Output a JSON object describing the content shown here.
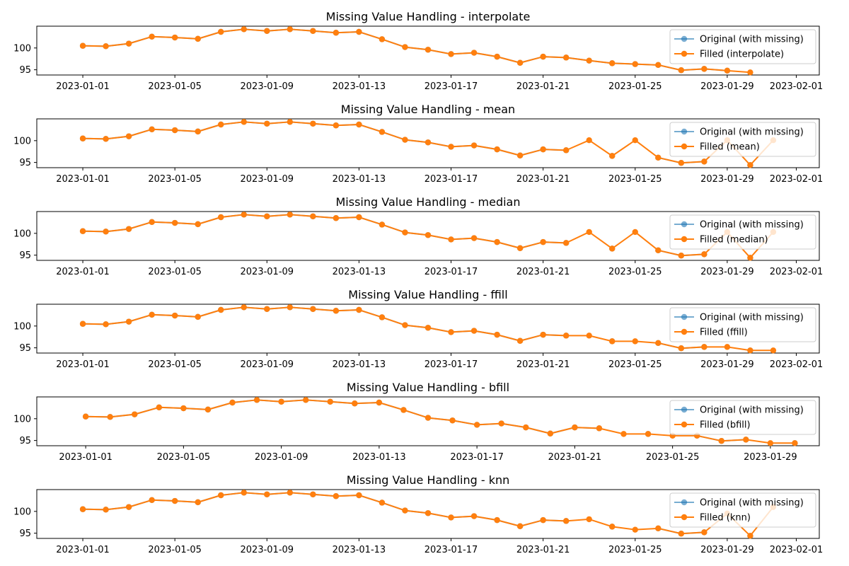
{
  "colors": {
    "original": "#1f77b4",
    "filled": "#ff7f0e",
    "axis": "#000000",
    "legend_border": "#cccccc"
  },
  "chart_data": [
    {
      "type": "line",
      "title": "Missing Value Handling - interpolate",
      "x_type": "date",
      "x": [
        "2023-01-01",
        "2023-01-02",
        "2023-01-03",
        "2023-01-04",
        "2023-01-05",
        "2023-01-06",
        "2023-01-07",
        "2023-01-08",
        "2023-01-09",
        "2023-01-10",
        "2023-01-11",
        "2023-01-12",
        "2023-01-13",
        "2023-01-14",
        "2023-01-15",
        "2023-01-16",
        "2023-01-17",
        "2023-01-18",
        "2023-01-19",
        "2023-01-20",
        "2023-01-21",
        "2023-01-22",
        "2023-01-23",
        "2023-01-24",
        "2023-01-25",
        "2023-01-26",
        "2023-01-27",
        "2023-01-28",
        "2023-01-29",
        "2023-01-30"
      ],
      "xlim": [
        "2022-12-30",
        "2023-02-02"
      ],
      "x_ticks": [
        "2023-01-01",
        "2023-01-05",
        "2023-01-09",
        "2023-01-13",
        "2023-01-17",
        "2023-01-21",
        "2023-01-25",
        "2023-01-29",
        "2023-02-01"
      ],
      "ylim": [
        93.8,
        105.0
      ],
      "y_ticks": [
        95,
        100
      ],
      "series": [
        {
          "name": "Original (with missing)",
          "values": [
            100.5,
            100.4,
            101.0,
            102.6,
            102.4,
            102.1,
            103.7,
            104.3,
            103.9,
            104.3,
            103.9,
            103.5,
            103.7,
            102.0,
            100.2,
            99.6,
            98.6,
            98.9,
            98.0,
            96.6,
            98.0,
            97.8,
            97.1,
            96.5,
            96.3,
            96.1,
            94.9,
            95.2,
            94.8,
            null
          ]
        },
        {
          "name": "Filled (interpolate)",
          "values": [
            100.5,
            100.4,
            101.0,
            102.6,
            102.4,
            102.1,
            103.7,
            104.3,
            103.9,
            104.3,
            103.9,
            103.5,
            103.7,
            102.0,
            100.2,
            99.6,
            98.6,
            98.9,
            98.0,
            96.6,
            98.0,
            97.8,
            97.1,
            96.5,
            96.3,
            96.1,
            94.9,
            95.2,
            94.8,
            94.4
          ]
        }
      ],
      "legend": "upper right"
    },
    {
      "type": "line",
      "title": "Missing Value Handling - mean",
      "x_type": "date",
      "x": [
        "2023-01-01",
        "2023-01-02",
        "2023-01-03",
        "2023-01-04",
        "2023-01-05",
        "2023-01-06",
        "2023-01-07",
        "2023-01-08",
        "2023-01-09",
        "2023-01-10",
        "2023-01-11",
        "2023-01-12",
        "2023-01-13",
        "2023-01-14",
        "2023-01-15",
        "2023-01-16",
        "2023-01-17",
        "2023-01-18",
        "2023-01-19",
        "2023-01-20",
        "2023-01-21",
        "2023-01-22",
        "2023-01-23",
        "2023-01-24",
        "2023-01-25",
        "2023-01-26",
        "2023-01-27",
        "2023-01-28",
        "2023-01-29",
        "2023-01-30",
        "2023-01-31"
      ],
      "xlim": [
        "2022-12-30",
        "2023-02-02"
      ],
      "x_ticks": [
        "2023-01-01",
        "2023-01-05",
        "2023-01-09",
        "2023-01-13",
        "2023-01-17",
        "2023-01-21",
        "2023-01-25",
        "2023-01-29",
        "2023-02-01"
      ],
      "ylim": [
        93.8,
        105.0
      ],
      "y_ticks": [
        95,
        100
      ],
      "series": [
        {
          "name": "Original (with missing)",
          "values": [
            100.5,
            100.4,
            101.0,
            102.6,
            102.4,
            102.1,
            103.7,
            104.3,
            103.9,
            104.3,
            103.9,
            103.5,
            103.7,
            102.0,
            100.2,
            99.6,
            98.6,
            98.9,
            98.0,
            96.6,
            98.0,
            97.8,
            null,
            96.5,
            null,
            96.1,
            94.9,
            95.2,
            null,
            94.4,
            null
          ]
        },
        {
          "name": "Filled (mean)",
          "values": [
            100.5,
            100.4,
            101.0,
            102.6,
            102.4,
            102.1,
            103.7,
            104.3,
            103.9,
            104.3,
            103.9,
            103.5,
            103.7,
            102.0,
            100.2,
            99.6,
            98.6,
            98.9,
            98.0,
            96.6,
            98.0,
            97.8,
            100.1,
            96.5,
            100.1,
            96.1,
            94.9,
            95.2,
            100.1,
            94.4,
            100.1
          ]
        }
      ],
      "legend": "upper right"
    },
    {
      "type": "line",
      "title": "Missing Value Handling - median",
      "x_type": "date",
      "x": [
        "2023-01-01",
        "2023-01-02",
        "2023-01-03",
        "2023-01-04",
        "2023-01-05",
        "2023-01-06",
        "2023-01-07",
        "2023-01-08",
        "2023-01-09",
        "2023-01-10",
        "2023-01-11",
        "2023-01-12",
        "2023-01-13",
        "2023-01-14",
        "2023-01-15",
        "2023-01-16",
        "2023-01-17",
        "2023-01-18",
        "2023-01-19",
        "2023-01-20",
        "2023-01-21",
        "2023-01-22",
        "2023-01-23",
        "2023-01-24",
        "2023-01-25",
        "2023-01-26",
        "2023-01-27",
        "2023-01-28",
        "2023-01-29",
        "2023-01-30",
        "2023-01-31"
      ],
      "xlim": [
        "2022-12-30",
        "2023-02-02"
      ],
      "x_ticks": [
        "2023-01-01",
        "2023-01-05",
        "2023-01-09",
        "2023-01-13",
        "2023-01-17",
        "2023-01-21",
        "2023-01-25",
        "2023-01-29",
        "2023-02-01"
      ],
      "ylim": [
        93.8,
        105.0
      ],
      "y_ticks": [
        95,
        100
      ],
      "series": [
        {
          "name": "Original (with missing)",
          "values": [
            100.5,
            100.4,
            101.0,
            102.6,
            102.4,
            102.1,
            103.7,
            104.3,
            103.9,
            104.3,
            103.9,
            103.5,
            103.7,
            102.0,
            100.2,
            99.6,
            98.6,
            98.9,
            98.0,
            96.6,
            98.0,
            97.8,
            null,
            96.5,
            null,
            96.1,
            94.9,
            95.2,
            null,
            94.4,
            null
          ]
        },
        {
          "name": "Filled (median)",
          "values": [
            100.5,
            100.4,
            101.0,
            102.6,
            102.4,
            102.1,
            103.7,
            104.3,
            103.9,
            104.3,
            103.9,
            103.5,
            103.7,
            102.0,
            100.2,
            99.6,
            98.6,
            98.9,
            98.0,
            96.6,
            98.0,
            97.8,
            100.3,
            96.5,
            100.3,
            96.1,
            94.9,
            95.2,
            100.3,
            94.4,
            100.3
          ]
        }
      ],
      "legend": "upper right"
    },
    {
      "type": "line",
      "title": "Missing Value Handling - ffill",
      "x_type": "date",
      "x": [
        "2023-01-01",
        "2023-01-02",
        "2023-01-03",
        "2023-01-04",
        "2023-01-05",
        "2023-01-06",
        "2023-01-07",
        "2023-01-08",
        "2023-01-09",
        "2023-01-10",
        "2023-01-11",
        "2023-01-12",
        "2023-01-13",
        "2023-01-14",
        "2023-01-15",
        "2023-01-16",
        "2023-01-17",
        "2023-01-18",
        "2023-01-19",
        "2023-01-20",
        "2023-01-21",
        "2023-01-22",
        "2023-01-23",
        "2023-01-24",
        "2023-01-25",
        "2023-01-26",
        "2023-01-27",
        "2023-01-28",
        "2023-01-29",
        "2023-01-30",
        "2023-01-31"
      ],
      "xlim": [
        "2022-12-30",
        "2023-02-02"
      ],
      "x_ticks": [
        "2023-01-01",
        "2023-01-05",
        "2023-01-09",
        "2023-01-13",
        "2023-01-17",
        "2023-01-21",
        "2023-01-25",
        "2023-01-29",
        "2023-02-01"
      ],
      "ylim": [
        93.8,
        105.0
      ],
      "y_ticks": [
        95,
        100
      ],
      "series": [
        {
          "name": "Original (with missing)",
          "values": [
            100.5,
            100.4,
            101.0,
            102.6,
            102.4,
            102.1,
            103.7,
            104.3,
            103.9,
            104.3,
            103.9,
            103.5,
            103.7,
            102.0,
            100.2,
            99.6,
            98.6,
            98.9,
            98.0,
            96.6,
            98.0,
            97.8,
            null,
            96.5,
            null,
            96.1,
            94.9,
            95.2,
            null,
            94.4,
            null
          ]
        },
        {
          "name": "Filled (ffill)",
          "values": [
            100.5,
            100.4,
            101.0,
            102.6,
            102.4,
            102.1,
            103.7,
            104.3,
            103.9,
            104.3,
            103.9,
            103.5,
            103.7,
            102.0,
            100.2,
            99.6,
            98.6,
            98.9,
            98.0,
            96.6,
            98.0,
            97.8,
            97.8,
            96.5,
            96.5,
            96.1,
            94.9,
            95.2,
            95.2,
            94.4,
            94.4
          ]
        }
      ],
      "legend": "upper right"
    },
    {
      "type": "line",
      "title": "Missing Value Handling - bfill",
      "x_type": "date",
      "x": [
        "2023-01-01",
        "2023-01-02",
        "2023-01-03",
        "2023-01-04",
        "2023-01-05",
        "2023-01-06",
        "2023-01-07",
        "2023-01-08",
        "2023-01-09",
        "2023-01-10",
        "2023-01-11",
        "2023-01-12",
        "2023-01-13",
        "2023-01-14",
        "2023-01-15",
        "2023-01-16",
        "2023-01-17",
        "2023-01-18",
        "2023-01-19",
        "2023-01-20",
        "2023-01-21",
        "2023-01-22",
        "2023-01-23",
        "2023-01-24",
        "2023-01-25",
        "2023-01-26",
        "2023-01-27",
        "2023-01-28",
        "2023-01-29",
        "2023-01-30"
      ],
      "xlim": [
        "2022-12-30",
        "2023-01-31"
      ],
      "x_ticks": [
        "2023-01-01",
        "2023-01-05",
        "2023-01-09",
        "2023-01-13",
        "2023-01-17",
        "2023-01-21",
        "2023-01-25",
        "2023-01-29"
      ],
      "ylim": [
        93.8,
        105.0
      ],
      "y_ticks": [
        95,
        100
      ],
      "series": [
        {
          "name": "Original (with missing)",
          "values": [
            100.5,
            100.4,
            101.0,
            102.6,
            102.4,
            102.1,
            103.7,
            104.3,
            103.9,
            104.3,
            103.9,
            103.5,
            103.7,
            102.0,
            100.2,
            99.6,
            98.6,
            98.9,
            98.0,
            96.6,
            98.0,
            97.8,
            null,
            96.5,
            null,
            96.1,
            94.9,
            95.2,
            null,
            94.4
          ]
        },
        {
          "name": "Filled (bfill)",
          "values": [
            100.5,
            100.4,
            101.0,
            102.6,
            102.4,
            102.1,
            103.7,
            104.3,
            103.9,
            104.3,
            103.9,
            103.5,
            103.7,
            102.0,
            100.2,
            99.6,
            98.6,
            98.9,
            98.0,
            96.6,
            98.0,
            97.8,
            96.5,
            96.5,
            96.1,
            96.1,
            94.9,
            95.2,
            94.4,
            94.4
          ]
        }
      ],
      "legend": "upper right"
    },
    {
      "type": "line",
      "title": "Missing Value Handling - knn",
      "x_type": "date",
      "x": [
        "2023-01-01",
        "2023-01-02",
        "2023-01-03",
        "2023-01-04",
        "2023-01-05",
        "2023-01-06",
        "2023-01-07",
        "2023-01-08",
        "2023-01-09",
        "2023-01-10",
        "2023-01-11",
        "2023-01-12",
        "2023-01-13",
        "2023-01-14",
        "2023-01-15",
        "2023-01-16",
        "2023-01-17",
        "2023-01-18",
        "2023-01-19",
        "2023-01-20",
        "2023-01-21",
        "2023-01-22",
        "2023-01-23",
        "2023-01-24",
        "2023-01-25",
        "2023-01-26",
        "2023-01-27",
        "2023-01-28",
        "2023-01-29",
        "2023-01-30",
        "2023-01-31"
      ],
      "xlim": [
        "2022-12-30",
        "2023-02-02"
      ],
      "x_ticks": [
        "2023-01-01",
        "2023-01-05",
        "2023-01-09",
        "2023-01-13",
        "2023-01-17",
        "2023-01-21",
        "2023-01-25",
        "2023-01-29",
        "2023-02-01"
      ],
      "ylim": [
        93.8,
        105.0
      ],
      "y_ticks": [
        95,
        100
      ],
      "series": [
        {
          "name": "Original (with missing)",
          "values": [
            100.5,
            100.4,
            101.0,
            102.6,
            102.4,
            102.1,
            103.7,
            104.3,
            103.9,
            104.3,
            103.9,
            103.5,
            103.7,
            102.0,
            100.2,
            99.6,
            98.6,
            98.9,
            98.0,
            96.6,
            98.0,
            97.8,
            null,
            96.5,
            null,
            96.1,
            94.9,
            95.2,
            null,
            94.4,
            null
          ]
        },
        {
          "name": "Filled (knn)",
          "values": [
            100.5,
            100.4,
            101.0,
            102.6,
            102.4,
            102.1,
            103.7,
            104.3,
            103.9,
            104.3,
            103.9,
            103.5,
            103.7,
            102.0,
            100.2,
            99.6,
            98.6,
            98.9,
            98.0,
            96.6,
            98.0,
            97.8,
            98.2,
            96.5,
            95.8,
            96.1,
            94.9,
            95.2,
            99.5,
            94.4,
            101.0
          ]
        }
      ],
      "legend": "upper right"
    }
  ]
}
